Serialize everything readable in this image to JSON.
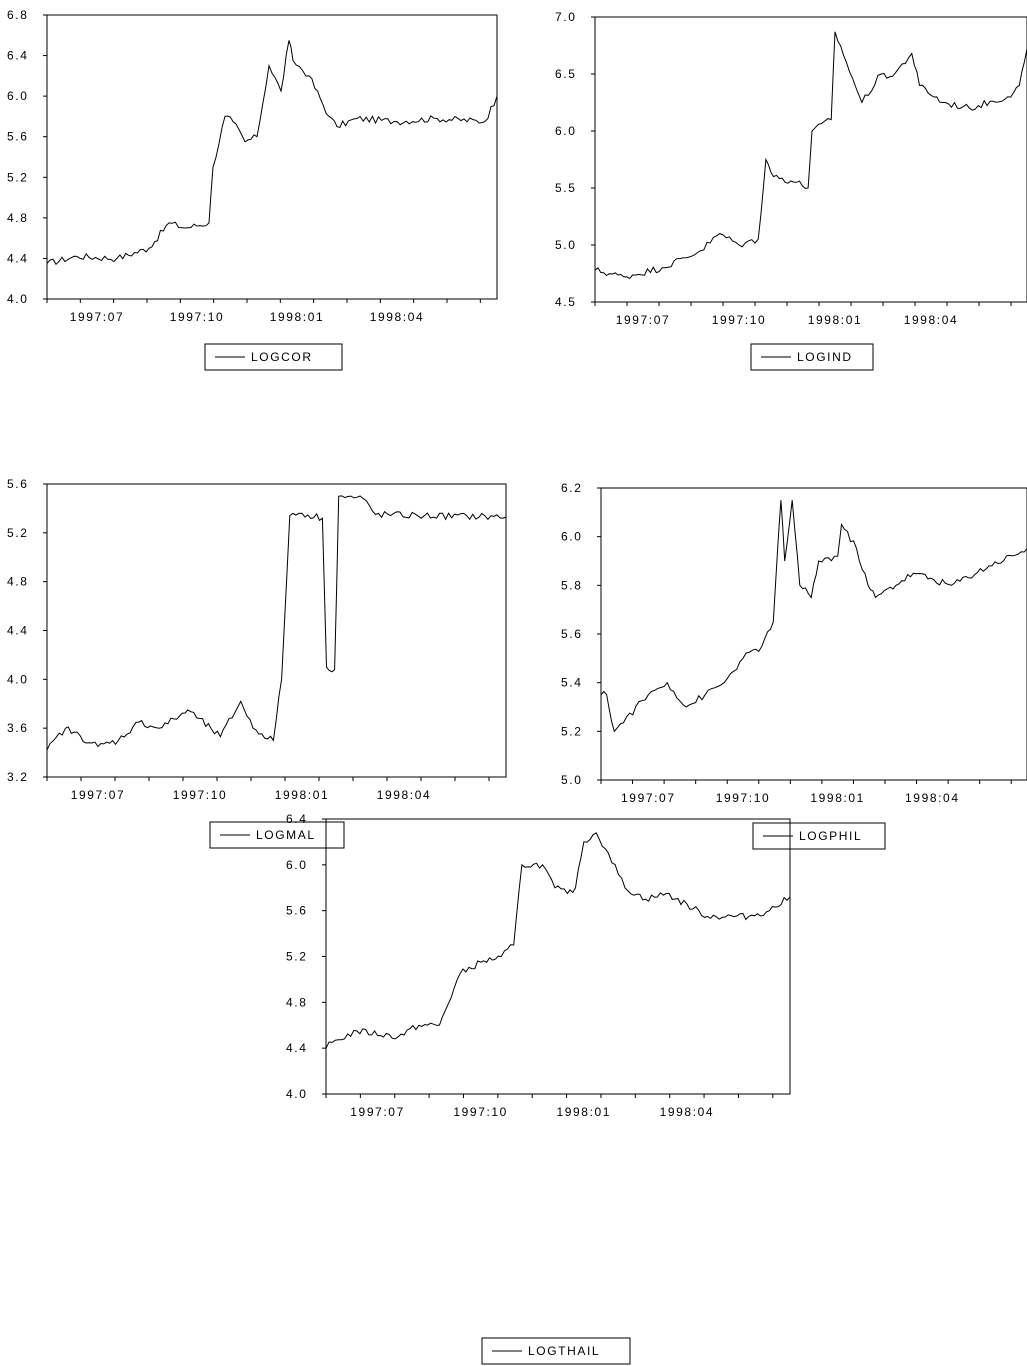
{
  "chart_data": [
    {
      "type": "line",
      "title": "",
      "xlabel": "",
      "ylabel": "",
      "ylim": [
        4.0,
        6.8
      ],
      "yticks": [
        "4.0",
        "4.4",
        "4.8",
        "5.2",
        "5.6",
        "6.0",
        "6.4",
        "6.8"
      ],
      "xlim": [
        1997.375,
        1998.5
      ],
      "xticks": [
        {
          "label": "1997:07",
          "x": 1997.5
        },
        {
          "label": "1997:10",
          "x": 1997.75
        },
        {
          "label": "1998:01",
          "x": 1998.0
        },
        {
          "label": "1998:04",
          "x": 1998.25
        }
      ],
      "legend": {
        "entries": [
          "LOGCOR"
        ],
        "placement": "bottom-center"
      },
      "series": [
        {
          "name": "LOGCOR",
          "x": [
            1997.375,
            1997.45,
            1997.55,
            1997.63,
            1997.68,
            1997.72,
            1997.78,
            1997.79,
            1997.82,
            1997.84,
            1997.87,
            1997.9,
            1997.93,
            1997.96,
            1997.98,
            1997.99,
            1998.03,
            1998.08,
            1998.1,
            1998.15,
            1998.25,
            1998.35,
            1998.47,
            1998.5
          ],
          "y": [
            4.35,
            4.42,
            4.4,
            4.5,
            4.75,
            4.7,
            4.75,
            5.3,
            5.8,
            5.75,
            5.55,
            5.6,
            6.3,
            6.05,
            6.55,
            6.35,
            6.2,
            5.8,
            5.7,
            5.78,
            5.75,
            5.78,
            5.75,
            6.0
          ]
        }
      ]
    },
    {
      "type": "line",
      "title": "",
      "xlabel": "",
      "ylabel": "",
      "ylim": [
        4.5,
        7.0
      ],
      "yticks": [
        "4.5",
        "5.0",
        "5.5",
        "6.0",
        "6.5",
        "7.0"
      ],
      "xlim": [
        1997.375,
        1998.5
      ],
      "xticks": [
        {
          "label": "1997:07",
          "x": 1997.5
        },
        {
          "label": "1997:10",
          "x": 1997.75
        },
        {
          "label": "1998:01",
          "x": 1998.0
        },
        {
          "label": "1998:04",
          "x": 1998.25
        }
      ],
      "legend": {
        "entries": [
          "LOGIND"
        ],
        "placement": "bottom-center"
      },
      "series": [
        {
          "name": "LOGIND",
          "x": [
            1997.375,
            1997.45,
            1997.55,
            1997.65,
            1997.7,
            1997.75,
            1997.8,
            1997.82,
            1997.84,
            1997.9,
            1997.93,
            1997.94,
            1997.99,
            1998.0,
            1998.03,
            1998.07,
            1998.12,
            1998.15,
            1998.2,
            1998.22,
            1998.28,
            1998.35,
            1998.45,
            1998.48,
            1998.5
          ],
          "y": [
            4.78,
            4.72,
            4.8,
            4.95,
            5.1,
            5.0,
            5.05,
            5.75,
            5.6,
            5.55,
            5.5,
            6.0,
            6.1,
            6.87,
            6.6,
            6.25,
            6.5,
            6.48,
            6.68,
            6.4,
            6.25,
            6.2,
            6.3,
            6.4,
            6.72
          ]
        }
      ]
    },
    {
      "type": "line",
      "title": "",
      "xlabel": "",
      "ylabel": "",
      "ylim": [
        3.2,
        5.6
      ],
      "yticks": [
        "3.2",
        "3.6",
        "4.0",
        "4.4",
        "4.8",
        "5.2",
        "5.6"
      ],
      "xlim": [
        1997.375,
        1998.5
      ],
      "xticks": [
        {
          "label": "1997:07",
          "x": 1997.5
        },
        {
          "label": "1997:10",
          "x": 1997.75
        },
        {
          "label": "1998:01",
          "x": 1998.0
        },
        {
          "label": "1998:04",
          "x": 1998.25
        }
      ],
      "legend": {
        "entries": [
          "LOGMAL"
        ],
        "placement": "bottom-center"
      },
      "series": [
        {
          "name": "LOGMAL",
          "x": [
            1997.375,
            1997.42,
            1997.5,
            1997.55,
            1997.6,
            1997.65,
            1997.7,
            1997.72,
            1997.8,
            1997.85,
            1997.88,
            1997.93,
            1997.95,
            1997.97,
            1998.0,
            1998.05,
            1998.06,
            1998.08,
            1998.09,
            1998.15,
            1998.18,
            1998.3,
            1998.5
          ],
          "y": [
            3.42,
            3.6,
            3.45,
            3.5,
            3.65,
            3.6,
            3.7,
            3.75,
            3.53,
            3.82,
            3.6,
            3.5,
            4.0,
            5.34,
            5.36,
            5.32,
            4.1,
            4.08,
            5.5,
            5.48,
            5.35,
            5.34,
            5.33
          ]
        }
      ]
    },
    {
      "type": "line",
      "title": "",
      "xlabel": "",
      "ylabel": "",
      "ylim": [
        5.0,
        6.2
      ],
      "yticks": [
        "5.0",
        "5.2",
        "5.4",
        "5.6",
        "5.8",
        "6.0",
        "6.2"
      ],
      "xlim": [
        1997.375,
        1998.5
      ],
      "xticks": [
        {
          "label": "1997:07",
          "x": 1997.5
        },
        {
          "label": "1997:10",
          "x": 1997.75
        },
        {
          "label": "1998:01",
          "x": 1998.0
        },
        {
          "label": "1998:04",
          "x": 1998.25
        }
      ],
      "legend": {
        "entries": [
          "LOGPHIL"
        ],
        "placement": "bottom-center"
      },
      "series": [
        {
          "name": "LOGPHIL",
          "x": [
            1997.375,
            1997.39,
            1997.41,
            1997.5,
            1997.55,
            1997.6,
            1997.65,
            1997.7,
            1997.75,
            1997.8,
            1997.83,
            1997.85,
            1997.86,
            1997.88,
            1997.9,
            1997.93,
            1997.95,
            1998.0,
            1998.01,
            1998.05,
            1998.08,
            1998.1,
            1998.2,
            1998.3,
            1998.4,
            1998.5
          ],
          "y": [
            5.35,
            5.35,
            5.2,
            5.35,
            5.4,
            5.3,
            5.35,
            5.4,
            5.5,
            5.55,
            5.65,
            6.15,
            5.9,
            6.15,
            5.8,
            5.75,
            5.9,
            5.92,
            6.05,
            5.95,
            5.8,
            5.75,
            5.85,
            5.8,
            5.88,
            5.95
          ]
        }
      ]
    },
    {
      "type": "line",
      "title": "",
      "xlabel": "",
      "ylabel": "",
      "ylim": [
        4.0,
        6.4
      ],
      "yticks": [
        "4.0",
        "4.4",
        "4.8",
        "5.2",
        "5.6",
        "6.0",
        "6.4"
      ],
      "xlim": [
        1997.375,
        1998.5
      ],
      "xticks": [
        {
          "label": "1997:07",
          "x": 1997.5
        },
        {
          "label": "1997:10",
          "x": 1997.75
        },
        {
          "label": "1998:01",
          "x": 1998.0
        },
        {
          "label": "1998:04",
          "x": 1998.25
        }
      ],
      "legend": {
        "entries": [
          "LOGTHAIL"
        ],
        "placement": "bottom-center"
      },
      "series": [
        {
          "name": "LOGTHAIL",
          "x": [
            1997.375,
            1997.39,
            1997.45,
            1997.55,
            1997.6,
            1997.65,
            1997.7,
            1997.75,
            1997.8,
            1997.83,
            1997.85,
            1997.9,
            1997.93,
            1997.96,
            1997.98,
            1998.0,
            1998.03,
            1998.06,
            1998.1,
            1998.15,
            1998.2,
            1998.3,
            1998.4,
            1998.45,
            1998.5
          ],
          "y": [
            4.4,
            4.45,
            4.55,
            4.5,
            4.6,
            4.6,
            5.05,
            5.15,
            5.2,
            5.3,
            6.0,
            6.0,
            5.8,
            5.75,
            5.8,
            6.2,
            6.28,
            6.1,
            5.8,
            5.7,
            5.75,
            5.55,
            5.55,
            5.6,
            5.72
          ]
        }
      ]
    }
  ]
}
